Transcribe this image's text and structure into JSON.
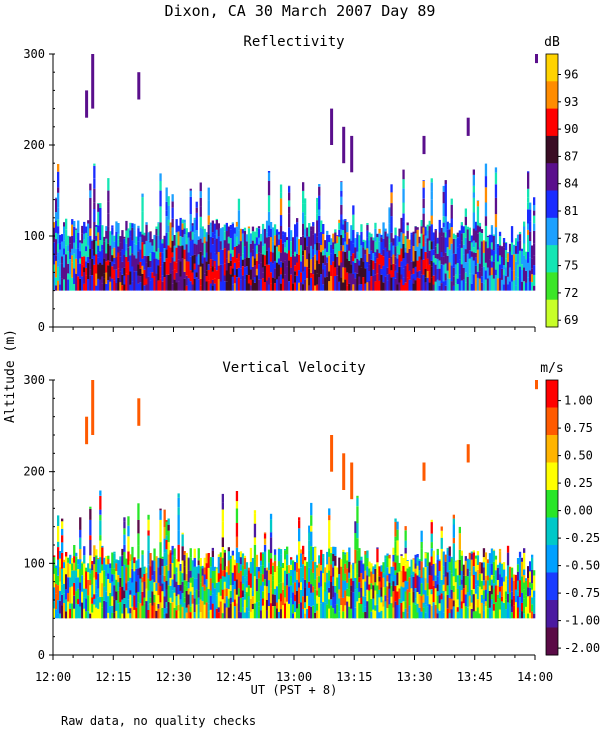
{
  "figure_title": "Dixon, CA 30 March 2007  Day  89",
  "footnote": "Raw data, no quality checks",
  "chart_data": [
    {
      "type": "heatmap",
      "title": "Reflectivity",
      "xlabel": "UT  (PST + 8)",
      "ylabel": "Altitude (m)",
      "xlim_minutes_after_1200": [
        0,
        120
      ],
      "ylim": [
        0,
        300
      ],
      "x_tick_labels": [
        "12:00",
        "12:15",
        "12:30",
        "12:45",
        "13:00",
        "13:15",
        "13:30",
        "13:45",
        "14:00"
      ],
      "y_ticks": [
        0,
        100,
        200,
        300
      ],
      "colorbar": {
        "unit": "dB",
        "labels": [
          "96",
          "93",
          "90",
          "87",
          "84",
          "81",
          "78",
          "75",
          "72",
          "69"
        ],
        "colors_top_to_bottom": [
          "#ffd300",
          "#ff8c00",
          "#ff0000",
          "#3a0d24",
          "#5a0f8c",
          "#1a2cff",
          "#1ca0ff",
          "#14e6b4",
          "#3ce628",
          "#c8ff28"
        ]
      },
      "description_values": {
        "echo_base_altitude": 40,
        "dense_layer_top": 120,
        "scattered_tops_to": 300
      }
    },
    {
      "type": "heatmap",
      "title": "Vertical Velocity",
      "xlabel": "UT  (PST + 8)",
      "ylabel": "Altitude (m)",
      "xlim_minutes_after_1200": [
        0,
        120
      ],
      "ylim": [
        0,
        300
      ],
      "x_tick_labels": [
        "12:00",
        "12:15",
        "12:30",
        "12:45",
        "13:00",
        "13:15",
        "13:30",
        "13:45",
        "14:00"
      ],
      "y_ticks": [
        0,
        100,
        200,
        300
      ],
      "colorbar": {
        "unit": "m/s",
        "labels": [
          "1.00",
          "0.75",
          "0.50",
          "0.25",
          "0.00",
          "-0.25",
          "-0.50",
          "-0.75",
          "-1.00",
          "-2.00"
        ],
        "colors_top_to_bottom": [
          "#ff0000",
          "#ff5a00",
          "#ffb400",
          "#ffff00",
          "#28e628",
          "#00c8c8",
          "#00a0ff",
          "#1a3cff",
          "#4b1aa0",
          "#5a0a46"
        ]
      }
    }
  ],
  "axis_labels": {
    "ylabel": "Altitude (m)",
    "xlabel": "UT  (PST + 8)"
  }
}
